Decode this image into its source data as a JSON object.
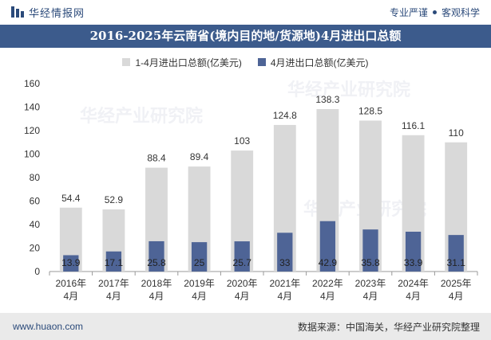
{
  "header": {
    "brand_name": "华经情报网",
    "slogan_left": "专业严谨",
    "slogan_right": "客观科学"
  },
  "title": "2016-2025年云南省(境内目的地/货源地)4月进出口总额",
  "footer": {
    "site": "www.huaon.com",
    "source": "数据来源：中国海关，华经产业研究院整理"
  },
  "watermark": "华经产业研究院",
  "colors": {
    "accent": "#3c5b8c",
    "series1": "#d9d9d9",
    "series2": "#4e6496"
  },
  "chart_data": {
    "type": "bar",
    "categories": [
      "2016年\n4月",
      "2017年\n4月",
      "2018年\n4月",
      "2019年\n4月",
      "2020年\n4月",
      "2021年\n4月",
      "2022年\n4月",
      "2023年\n4月",
      "2024年\n4月",
      "2025年\n4月"
    ],
    "series": [
      {
        "name": "1-4月进出口总额(亿美元)",
        "values": [
          54.4,
          52.9,
          88.4,
          89.4,
          103,
          124.8,
          138.3,
          128.5,
          116.1,
          110
        ]
      },
      {
        "name": "4月进出口总额(亿美元)",
        "values": [
          13.9,
          17.1,
          25.8,
          25,
          25.7,
          33,
          42.9,
          35.8,
          33.9,
          31.1
        ]
      }
    ],
    "ylim": [
      0,
      160
    ],
    "yticks": [
      0,
      20,
      40,
      60,
      80,
      100,
      120,
      140,
      160
    ],
    "grid": false,
    "legend_position": "top-center"
  }
}
